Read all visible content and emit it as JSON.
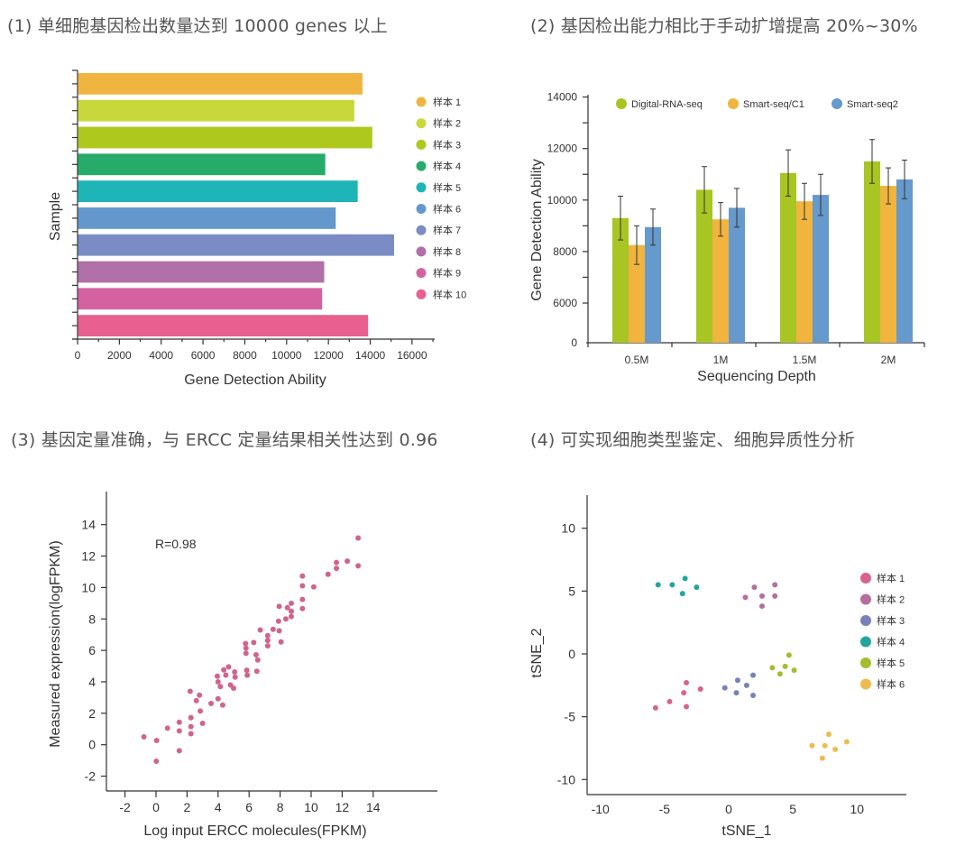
{
  "headings": {
    "h1": "(1) 单细胞基因检出数量达到 10000 genes 以上",
    "h2": "(2) 基因检出能力相比于手动扩增提高 20%~30%",
    "h3": "(3) 基因定量准确，与 ERCC 定量结果相关性达到 0.96",
    "h4": "(4) 可实现细胞类型鉴定、细胞异质性分析"
  },
  "chart_data": [
    {
      "type": "bar",
      "orientation": "horizontal",
      "xlabel": "Gene Detection Ability",
      "ylabel": "Sample",
      "xlim": [
        0,
        17000
      ],
      "xticks": [
        0,
        2000,
        4000,
        6000,
        8000,
        10000,
        12000,
        14000,
        16000
      ],
      "legend_position": "right",
      "categories": [
        "样本 1",
        "样本 2",
        "样本 3",
        "样本 4",
        "样本 5",
        "样本 6",
        "样本 7",
        "样本 8",
        "样本 9",
        "样本 10"
      ],
      "values": [
        13630,
        13240,
        14100,
        11850,
        13400,
        12350,
        15140,
        11800,
        11700,
        13900
      ],
      "colors": [
        "#f0b541",
        "#c8d83c",
        "#afc81e",
        "#26ab6a",
        "#1eb4b8",
        "#6498cc",
        "#7b8bc4",
        "#b170a8",
        "#d562a0",
        "#e8608f"
      ]
    },
    {
      "type": "bar",
      "orientation": "grouped-vertical",
      "xlabel": "Sequencing Depth",
      "ylabel": "Gene Detection Ability",
      "yaxis_broken": true,
      "yticks": [
        0,
        6000,
        8000,
        10000,
        12000,
        14000
      ],
      "legend_position": "top",
      "categories": [
        "0.5M",
        "1M",
        "1.5M",
        "2M"
      ],
      "series": [
        {
          "name": "Digital-RNA-seq",
          "color": "#a8c523",
          "values": [
            9300,
            10400,
            11050,
            11500
          ],
          "errors": [
            850,
            900,
            900,
            850
          ]
        },
        {
          "name": "Smart-seq/C1",
          "color": "#f0b43f",
          "values": [
            8250,
            9250,
            9950,
            10550
          ],
          "errors": [
            750,
            650,
            700,
            700
          ]
        },
        {
          "name": "Smart-seq2",
          "color": "#6699cc",
          "values": [
            8950,
            9700,
            10200,
            10800
          ],
          "errors": [
            700,
            750,
            800,
            750
          ]
        }
      ]
    },
    {
      "type": "scatter",
      "xlabel": "Log input ERCC molecules(FPKM)",
      "ylabel": "Measured expression(logFPKM)",
      "annotation": "R=0.98",
      "xticks": [
        -2,
        0,
        2,
        4,
        6,
        8,
        10,
        12,
        14
      ],
      "yticks": [
        -2,
        0,
        2,
        4,
        6,
        8,
        10,
        12,
        14
      ],
      "color": "#d0648e",
      "points": [
        [
          -0.78,
          0.5
        ],
        [
          0.04,
          0.27
        ],
        [
          0.02,
          -1.05
        ],
        [
          0.74,
          1.05
        ],
        [
          1.5,
          1.43
        ],
        [
          1.5,
          0.88
        ],
        [
          1.5,
          -0.38
        ],
        [
          2.2,
          3.4
        ],
        [
          2.25,
          1.72
        ],
        [
          2.25,
          1.15
        ],
        [
          2.25,
          0.7
        ],
        [
          2.6,
          2.8
        ],
        [
          2.8,
          3.15
        ],
        [
          2.85,
          2.14
        ],
        [
          3.0,
          1.36
        ],
        [
          3.55,
          2.62
        ],
        [
          4.0,
          2.92
        ],
        [
          4.3,
          2.52
        ],
        [
          3.95,
          4.36
        ],
        [
          4.0,
          4.0
        ],
        [
          4.15,
          3.7
        ],
        [
          4.37,
          4.76
        ],
        [
          4.5,
          4.43
        ],
        [
          4.68,
          4.95
        ],
        [
          4.8,
          3.8
        ],
        [
          5.0,
          3.6
        ],
        [
          5.07,
          4.63
        ],
        [
          5.1,
          4.3
        ],
        [
          5.77,
          6.44
        ],
        [
          5.8,
          6.14
        ],
        [
          5.8,
          5.81
        ],
        [
          5.85,
          4.74
        ],
        [
          5.88,
          4.42
        ],
        [
          6.3,
          6.5
        ],
        [
          6.45,
          5.72
        ],
        [
          6.56,
          5.39
        ],
        [
          6.5,
          4.67
        ],
        [
          6.72,
          7.3
        ],
        [
          7.2,
          6.94
        ],
        [
          7.2,
          6.63
        ],
        [
          7.2,
          6.29
        ],
        [
          7.55,
          7.34
        ],
        [
          7.9,
          7.86
        ],
        [
          7.94,
          8.8
        ],
        [
          7.94,
          7.25
        ],
        [
          8.06,
          6.54
        ],
        [
          8.37,
          8.0
        ],
        [
          8.47,
          8.72
        ],
        [
          8.72,
          9.0
        ],
        [
          8.72,
          8.49
        ],
        [
          8.72,
          8.16
        ],
        [
          9.44,
          10.73
        ],
        [
          9.44,
          10.11
        ],
        [
          9.44,
          9.24
        ],
        [
          9.44,
          8.66
        ],
        [
          10.17,
          10.04
        ],
        [
          11.09,
          10.84
        ],
        [
          11.63,
          11.59
        ],
        [
          11.63,
          11.22
        ],
        [
          12.33,
          11.68
        ],
        [
          13.03,
          13.15
        ],
        [
          13.03,
          11.38
        ]
      ]
    },
    {
      "type": "scatter",
      "xlabel": "tSNE_1",
      "ylabel": "tSNE_2",
      "xticks": [
        -10,
        -5,
        0,
        5,
        10
      ],
      "yticks": [
        -10,
        -5,
        0,
        5,
        10
      ],
      "legend_position": "right",
      "series": [
        {
          "name": "样本 1",
          "color": "#d9628f",
          "points": [
            [
              -5.7,
              -4.3
            ],
            [
              -4.6,
              -3.8
            ],
            [
              -3.5,
              -3.1
            ],
            [
              -3.3,
              -2.3
            ],
            [
              -3.3,
              -4.2
            ],
            [
              -2.2,
              -2.8
            ]
          ]
        },
        {
          "name": "样本 2",
          "color": "#b56e9e",
          "points": [
            [
              2.0,
              5.3
            ],
            [
              3.6,
              5.5
            ],
            [
              1.3,
              4.5
            ],
            [
              2.6,
              4.6
            ],
            [
              3.6,
              4.6
            ],
            [
              2.6,
              3.8
            ]
          ]
        },
        {
          "name": "样本 3",
          "color": "#7782b8",
          "points": [
            [
              -0.3,
              -2.7
            ],
            [
              0.6,
              -3.1
            ],
            [
              0.7,
              -2.1
            ],
            [
              1.4,
              -2.5
            ],
            [
              1.9,
              -1.7
            ],
            [
              1.9,
              -3.3
            ]
          ]
        },
        {
          "name": "样本 4",
          "color": "#23a59e",
          "points": [
            [
              -5.5,
              5.5
            ],
            [
              -4.4,
              5.5
            ],
            [
              -3.4,
              6.0
            ],
            [
              -3.6,
              4.8
            ],
            [
              -2.5,
              5.3
            ]
          ]
        },
        {
          "name": "样本 5",
          "color": "#a3bd2e",
          "points": [
            [
              3.4,
              -1.1
            ],
            [
              4.0,
              -1.6
            ],
            [
              4.4,
              -1.0
            ],
            [
              4.7,
              -0.1
            ],
            [
              5.1,
              -1.3
            ]
          ]
        },
        {
          "name": "样本 6",
          "color": "#eebb4f",
          "points": [
            [
              6.5,
              -7.3
            ],
            [
              7.5,
              -7.3
            ],
            [
              7.8,
              -6.4
            ],
            [
              8.3,
              -7.6
            ],
            [
              7.3,
              -8.3
            ],
            [
              9.2,
              -7.0
            ]
          ]
        }
      ]
    }
  ]
}
